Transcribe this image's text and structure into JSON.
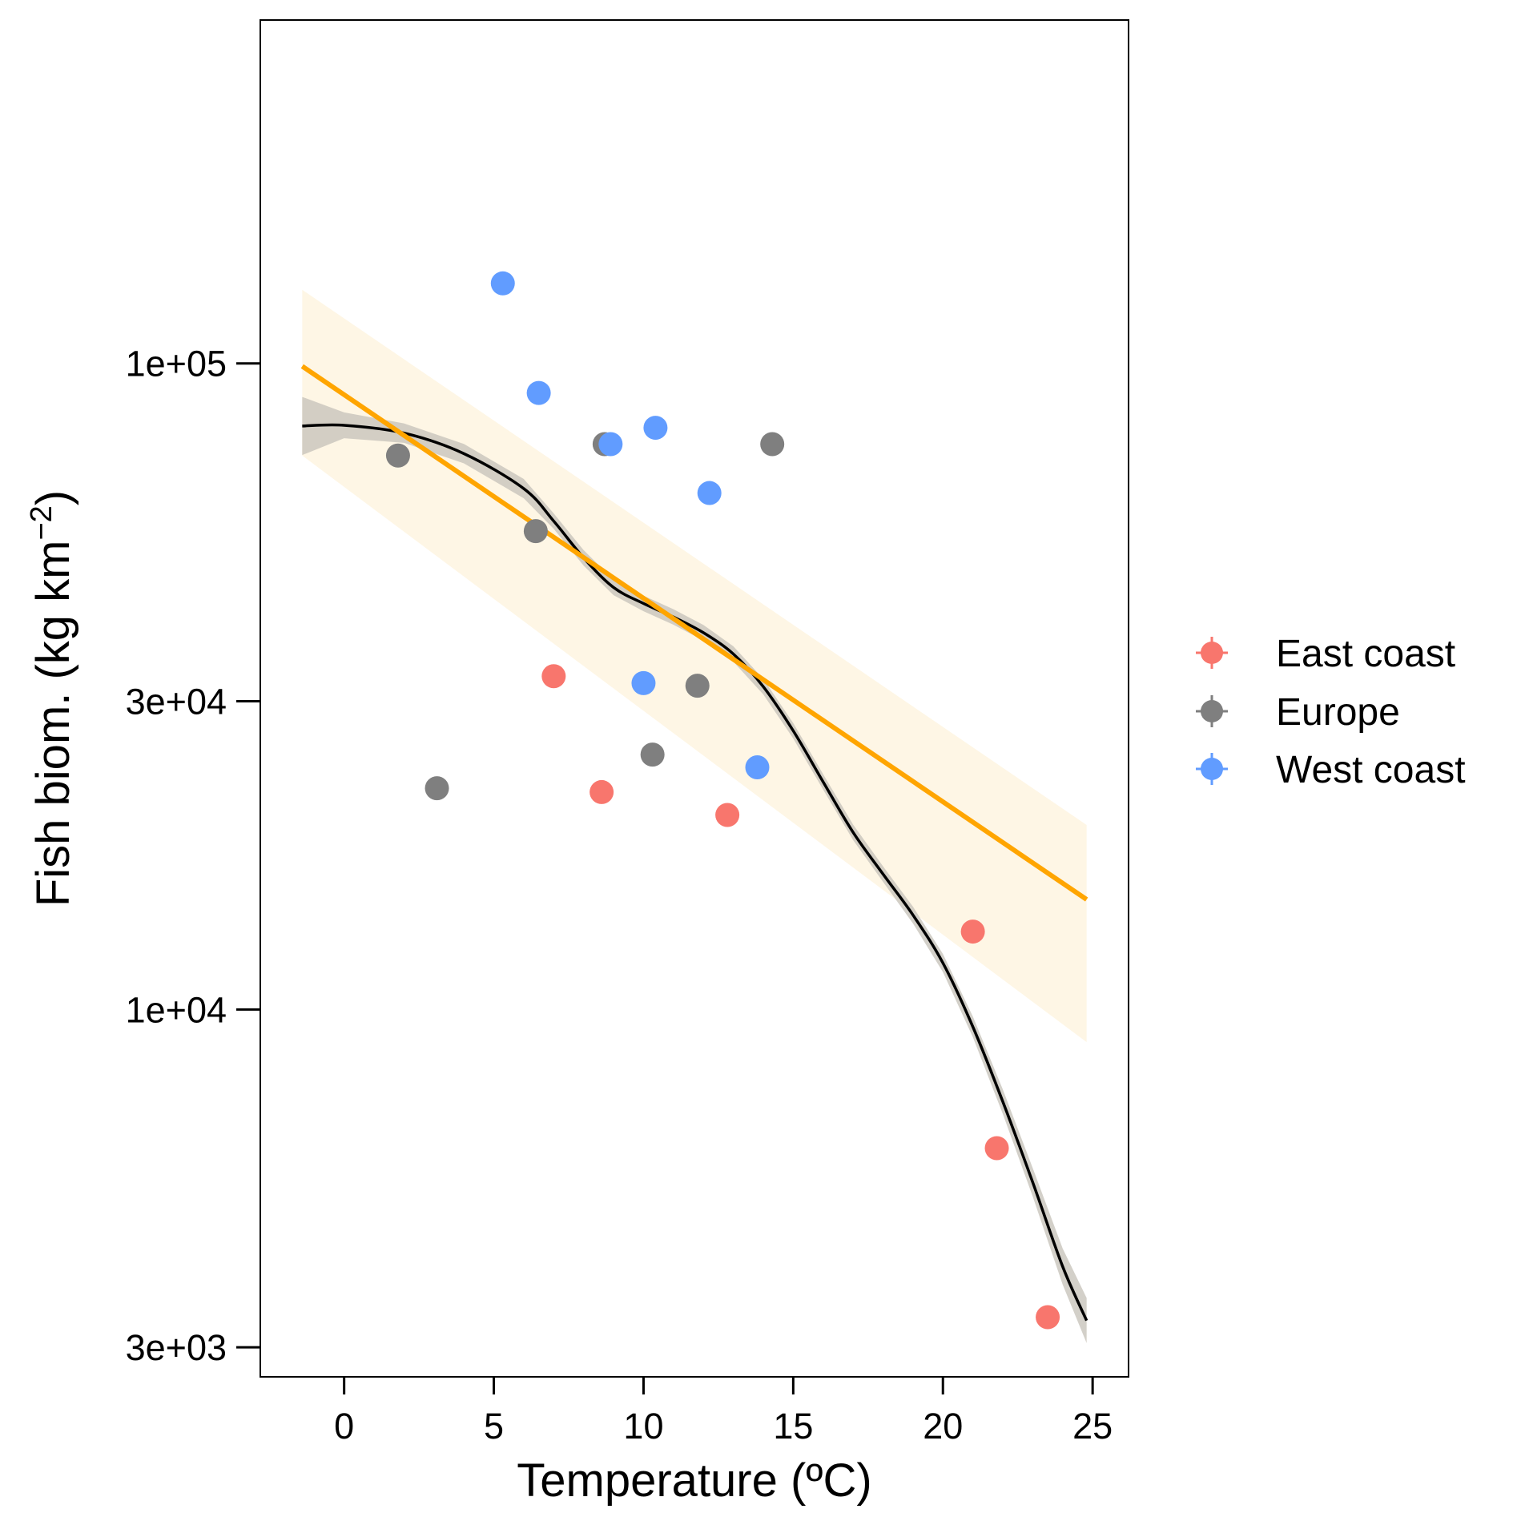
{
  "chart_data": {
    "type": "scatter",
    "xlabel": "Temperature (ºC)",
    "ylabel_main": "Fish biom. (kg km",
    "ylabel_sup": "−2",
    "ylabel_close": ")",
    "y_scale": "log",
    "xlim": [
      -2.8,
      26.2
    ],
    "ylim": [
      2700,
      340000
    ],
    "x_ticks": [
      {
        "value": 0,
        "label": "0"
      },
      {
        "value": 5,
        "label": "5"
      },
      {
        "value": 10,
        "label": "10"
      },
      {
        "value": 15,
        "label": "15"
      },
      {
        "value": 20,
        "label": "20"
      },
      {
        "value": 25,
        "label": "25"
      }
    ],
    "y_ticks": [
      {
        "value": 100000,
        "label": "1e+05"
      },
      {
        "value": 30000,
        "label": "3e+04"
      },
      {
        "value": 10000,
        "label": "1e+04"
      },
      {
        "value": 3000,
        "label": "3e+03"
      }
    ],
    "grid": false,
    "legend_position": "right",
    "series": [
      {
        "name": "East coast",
        "color": "#F8766D",
        "points": [
          [
            7.0,
            32800
          ],
          [
            8.6,
            21700
          ],
          [
            12.8,
            20000
          ],
          [
            21.0,
            13200
          ],
          [
            21.8,
            6100
          ],
          [
            23.5,
            3340
          ]
        ]
      },
      {
        "name": "Europe",
        "color": "#7F7F7F",
        "points": [
          [
            1.8,
            72000
          ],
          [
            3.1,
            22000
          ],
          [
            6.4,
            55000
          ],
          [
            8.7,
            75000
          ],
          [
            10.3,
            24800
          ],
          [
            11.8,
            31700
          ],
          [
            14.3,
            75000
          ]
        ]
      },
      {
        "name": "West coast",
        "color": "#619CFF",
        "points": [
          [
            5.3,
            133000
          ],
          [
            6.5,
            90000
          ],
          [
            8.9,
            75000
          ],
          [
            10.0,
            32000
          ],
          [
            10.4,
            79500
          ],
          [
            12.2,
            63000
          ],
          [
            13.8,
            23700
          ]
        ]
      }
    ],
    "linear_fit": {
      "color": "#FFA500",
      "band_color": "#FEF6E5",
      "x": [
        -1.4,
        24.8
      ],
      "y": [
        99000,
        14800
      ],
      "band_upper": [
        130000,
        19300
      ],
      "band_lower": [
        72000,
        8900
      ]
    },
    "smooth_fit": {
      "color": "#000000",
      "band_color": "#C8C4BB",
      "x": [
        -1.4,
        0,
        2,
        4,
        6,
        7,
        8,
        9,
        10,
        11,
        12,
        13,
        14,
        15,
        16,
        17,
        18,
        19,
        20,
        21,
        22,
        23,
        24,
        24.8
      ],
      "y": [
        80000,
        80200,
        78000,
        72500,
        64000,
        57000,
        50000,
        45000,
        42500,
        40500,
        38300,
        35500,
        31600,
        27000,
        22500,
        18800,
        16200,
        14000,
        11800,
        9400,
        7200,
        5400,
        4000,
        3300
      ],
      "band_half_width": [
        0.045,
        0.02,
        0.015,
        0.015,
        0.015,
        0.012,
        0.012,
        0.012,
        0.012,
        0.012,
        0.012,
        0.012,
        0.012,
        0.012,
        0.012,
        0.012,
        0.012,
        0.013,
        0.014,
        0.016,
        0.019,
        0.022,
        0.028,
        0.035
      ]
    }
  }
}
